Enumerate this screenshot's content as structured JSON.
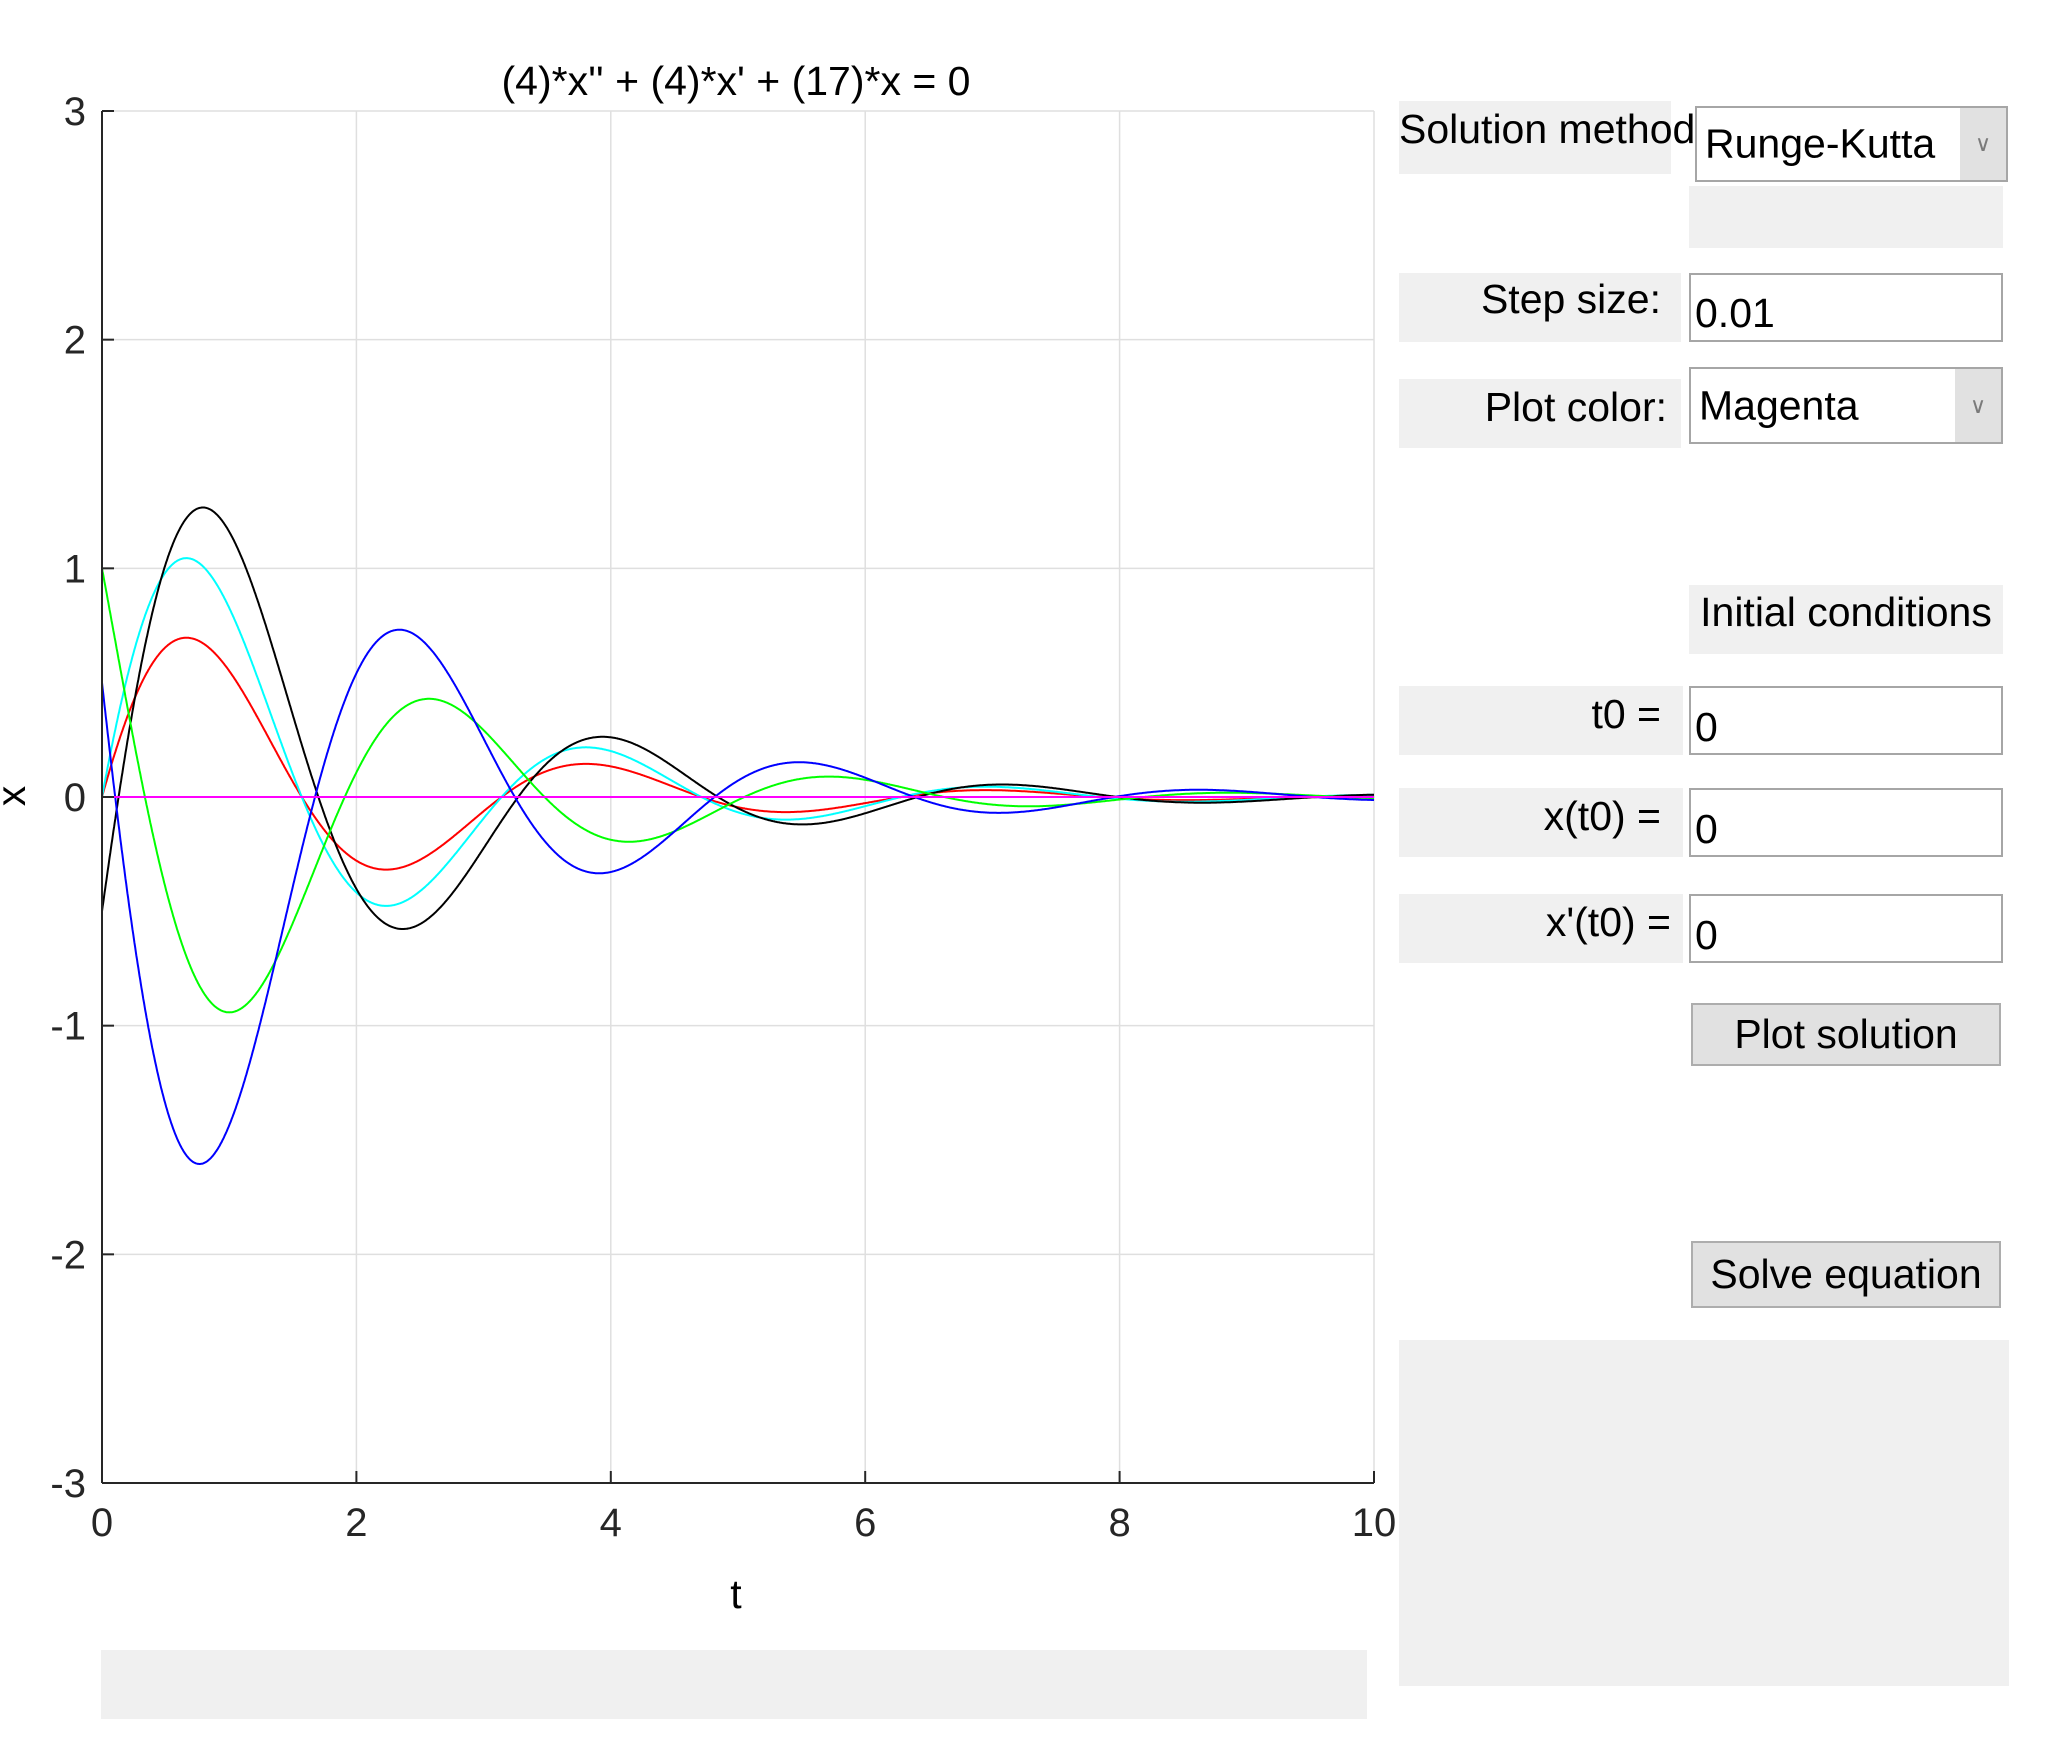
{
  "chart_data": {
    "type": "line",
    "title": "(4)*x'' + (4)*x' + (17)*x = 0",
    "xlabel": "t",
    "ylabel": "x",
    "xlim": [
      0,
      10
    ],
    "ylim": [
      -3,
      3
    ],
    "xticks": [
      "0",
      "2",
      "4",
      "6",
      "8",
      "10"
    ],
    "yticks": [
      "3",
      "2",
      "1",
      "0",
      "-1",
      "-2",
      "-3"
    ],
    "grid": true,
    "equation": {
      "a": 4,
      "b": 4,
      "c": 17
    },
    "series": [
      {
        "color": "#ff0000",
        "x0": 0,
        "v0": 2
      },
      {
        "color": "#00ffff",
        "x0": 0,
        "v0": 3
      },
      {
        "color": "#000000",
        "x0": -0.5,
        "v0": 4
      },
      {
        "color": "#00ff00",
        "x0": 1,
        "v0": -3
      },
      {
        "color": "#0000ff",
        "x0": 0.5,
        "v0": -5
      },
      {
        "color": "#ff00ff",
        "x0": 0,
        "v0": 0
      }
    ]
  },
  "controls": {
    "method_label": "Solution method:",
    "method_value": "Runge-Kutta",
    "step_label": "Step size:",
    "step_value": "0.01",
    "color_label": "Plot color:",
    "color_value": "Magenta",
    "ic_heading": "Initial conditions",
    "t0_label": "t0 =",
    "t0_value": "0",
    "x0_label": "x(t0) =",
    "x0_value": "0",
    "v0_label": "x'(t0) =",
    "v0_value": "0",
    "plot_button": "Plot solution",
    "solve_button": "Solve equation"
  }
}
